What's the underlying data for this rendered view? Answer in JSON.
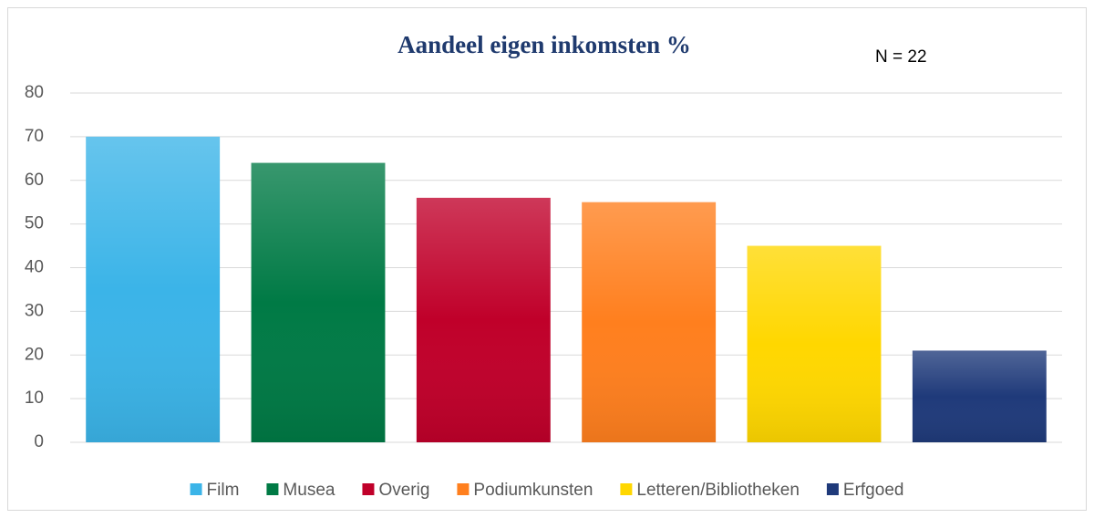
{
  "chart_data": {
    "type": "bar",
    "title": "Aandeel eigen inkomsten %",
    "annotation": "N = 22",
    "categories": [
      "Film",
      "Musea",
      "Overig",
      "Podiumkunsten",
      "Letteren/Bibliotheken",
      "Erfgoed"
    ],
    "values": [
      70,
      64,
      56,
      55,
      45,
      21
    ],
    "colors": [
      "#3bb4e8",
      "#007a45",
      "#c0002a",
      "#ff7f1e",
      "#ffd700",
      "#1f3a7a"
    ],
    "ylim": [
      0,
      80
    ],
    "yticks": [
      0,
      10,
      20,
      30,
      40,
      50,
      60,
      70,
      80
    ],
    "grid": true,
    "legend": "bottom"
  }
}
